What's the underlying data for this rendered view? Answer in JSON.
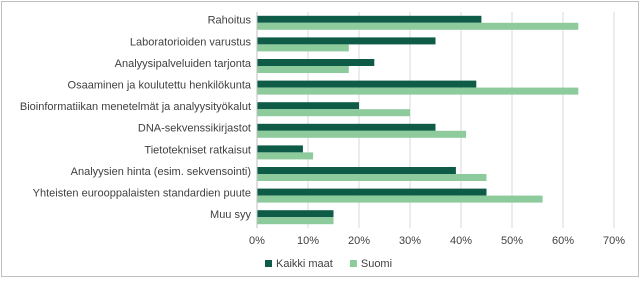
{
  "chart_data": {
    "type": "barh",
    "categories": [
      "Rahoitus",
      "Laboratorioiden varustus",
      "Analyysipalveluiden tarjonta",
      "Osaaminen ja koulutettu henkilökunta",
      "Bioinformatiikan menetelmät ja analyysityökalut",
      "DNA-sekvenssikirjastot",
      "Tietotekniset ratkaisut",
      "Analyysien hinta (esim. sekvensointi)",
      "Yhteisten eurooppalaisten standardien puute",
      "Muu syy"
    ],
    "series": [
      {
        "name": "Kaikki maat",
        "color": "#0e5c48",
        "values": [
          44,
          35,
          23,
          43,
          20,
          35,
          9,
          39,
          45,
          15
        ]
      },
      {
        "name": "Suomi",
        "color": "#8dcb9c",
        "values": [
          63,
          18,
          18,
          63,
          30,
          41,
          11,
          45,
          56,
          15
        ]
      }
    ],
    "xlim": [
      0,
      70
    ],
    "xticks": [
      {
        "value": 0,
        "label": "0%"
      },
      {
        "value": 10,
        "label": "10%"
      },
      {
        "value": 20,
        "label": "20%"
      },
      {
        "value": 30,
        "label": "30%"
      },
      {
        "value": 40,
        "label": "40%"
      },
      {
        "value": 50,
        "label": "50%"
      },
      {
        "value": 60,
        "label": "60%"
      },
      {
        "value": 70,
        "label": "70%"
      }
    ],
    "grid": true,
    "legend": "bottom"
  }
}
